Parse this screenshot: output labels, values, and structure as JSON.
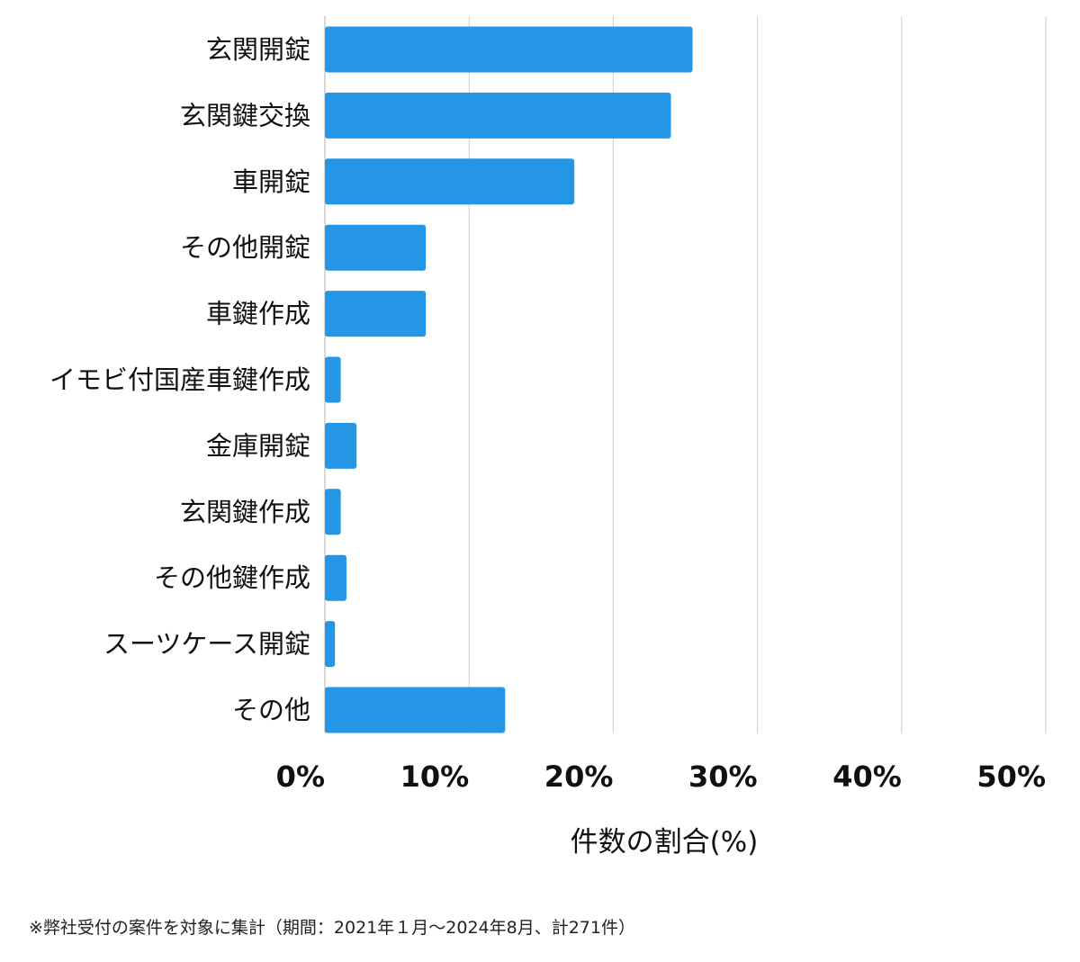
{
  "chart_data": {
    "type": "bar",
    "orientation": "horizontal",
    "categories": [
      "玄関開錠",
      "玄関鍵交換",
      "車開錠",
      "その他開錠",
      "車鍵作成",
      "イモビ付国産車鍵作成",
      "金庫開錠",
      "玄関鍵作成",
      "その他鍵作成",
      "スーツケース開錠",
      "その他"
    ],
    "values": [
      25.5,
      24.0,
      17.3,
      7.0,
      7.0,
      1.1,
      2.2,
      1.1,
      1.5,
      0.7,
      12.5
    ],
    "x_ticks": [
      0,
      10,
      20,
      30,
      40,
      50
    ],
    "x_tick_labels": [
      "0%",
      "10%",
      "20%",
      "30%",
      "40%",
      "50%"
    ],
    "xlim": [
      0,
      50
    ],
    "xlabel": "件数の割合(%)",
    "ylabel": "",
    "title": "",
    "grid": true,
    "bar_color": "#2596e5",
    "grid_color": "#cccccc"
  },
  "footnote": "※弊社受付の案件を対象に集計（期間：2021年１月〜2024年8月、計271件）"
}
